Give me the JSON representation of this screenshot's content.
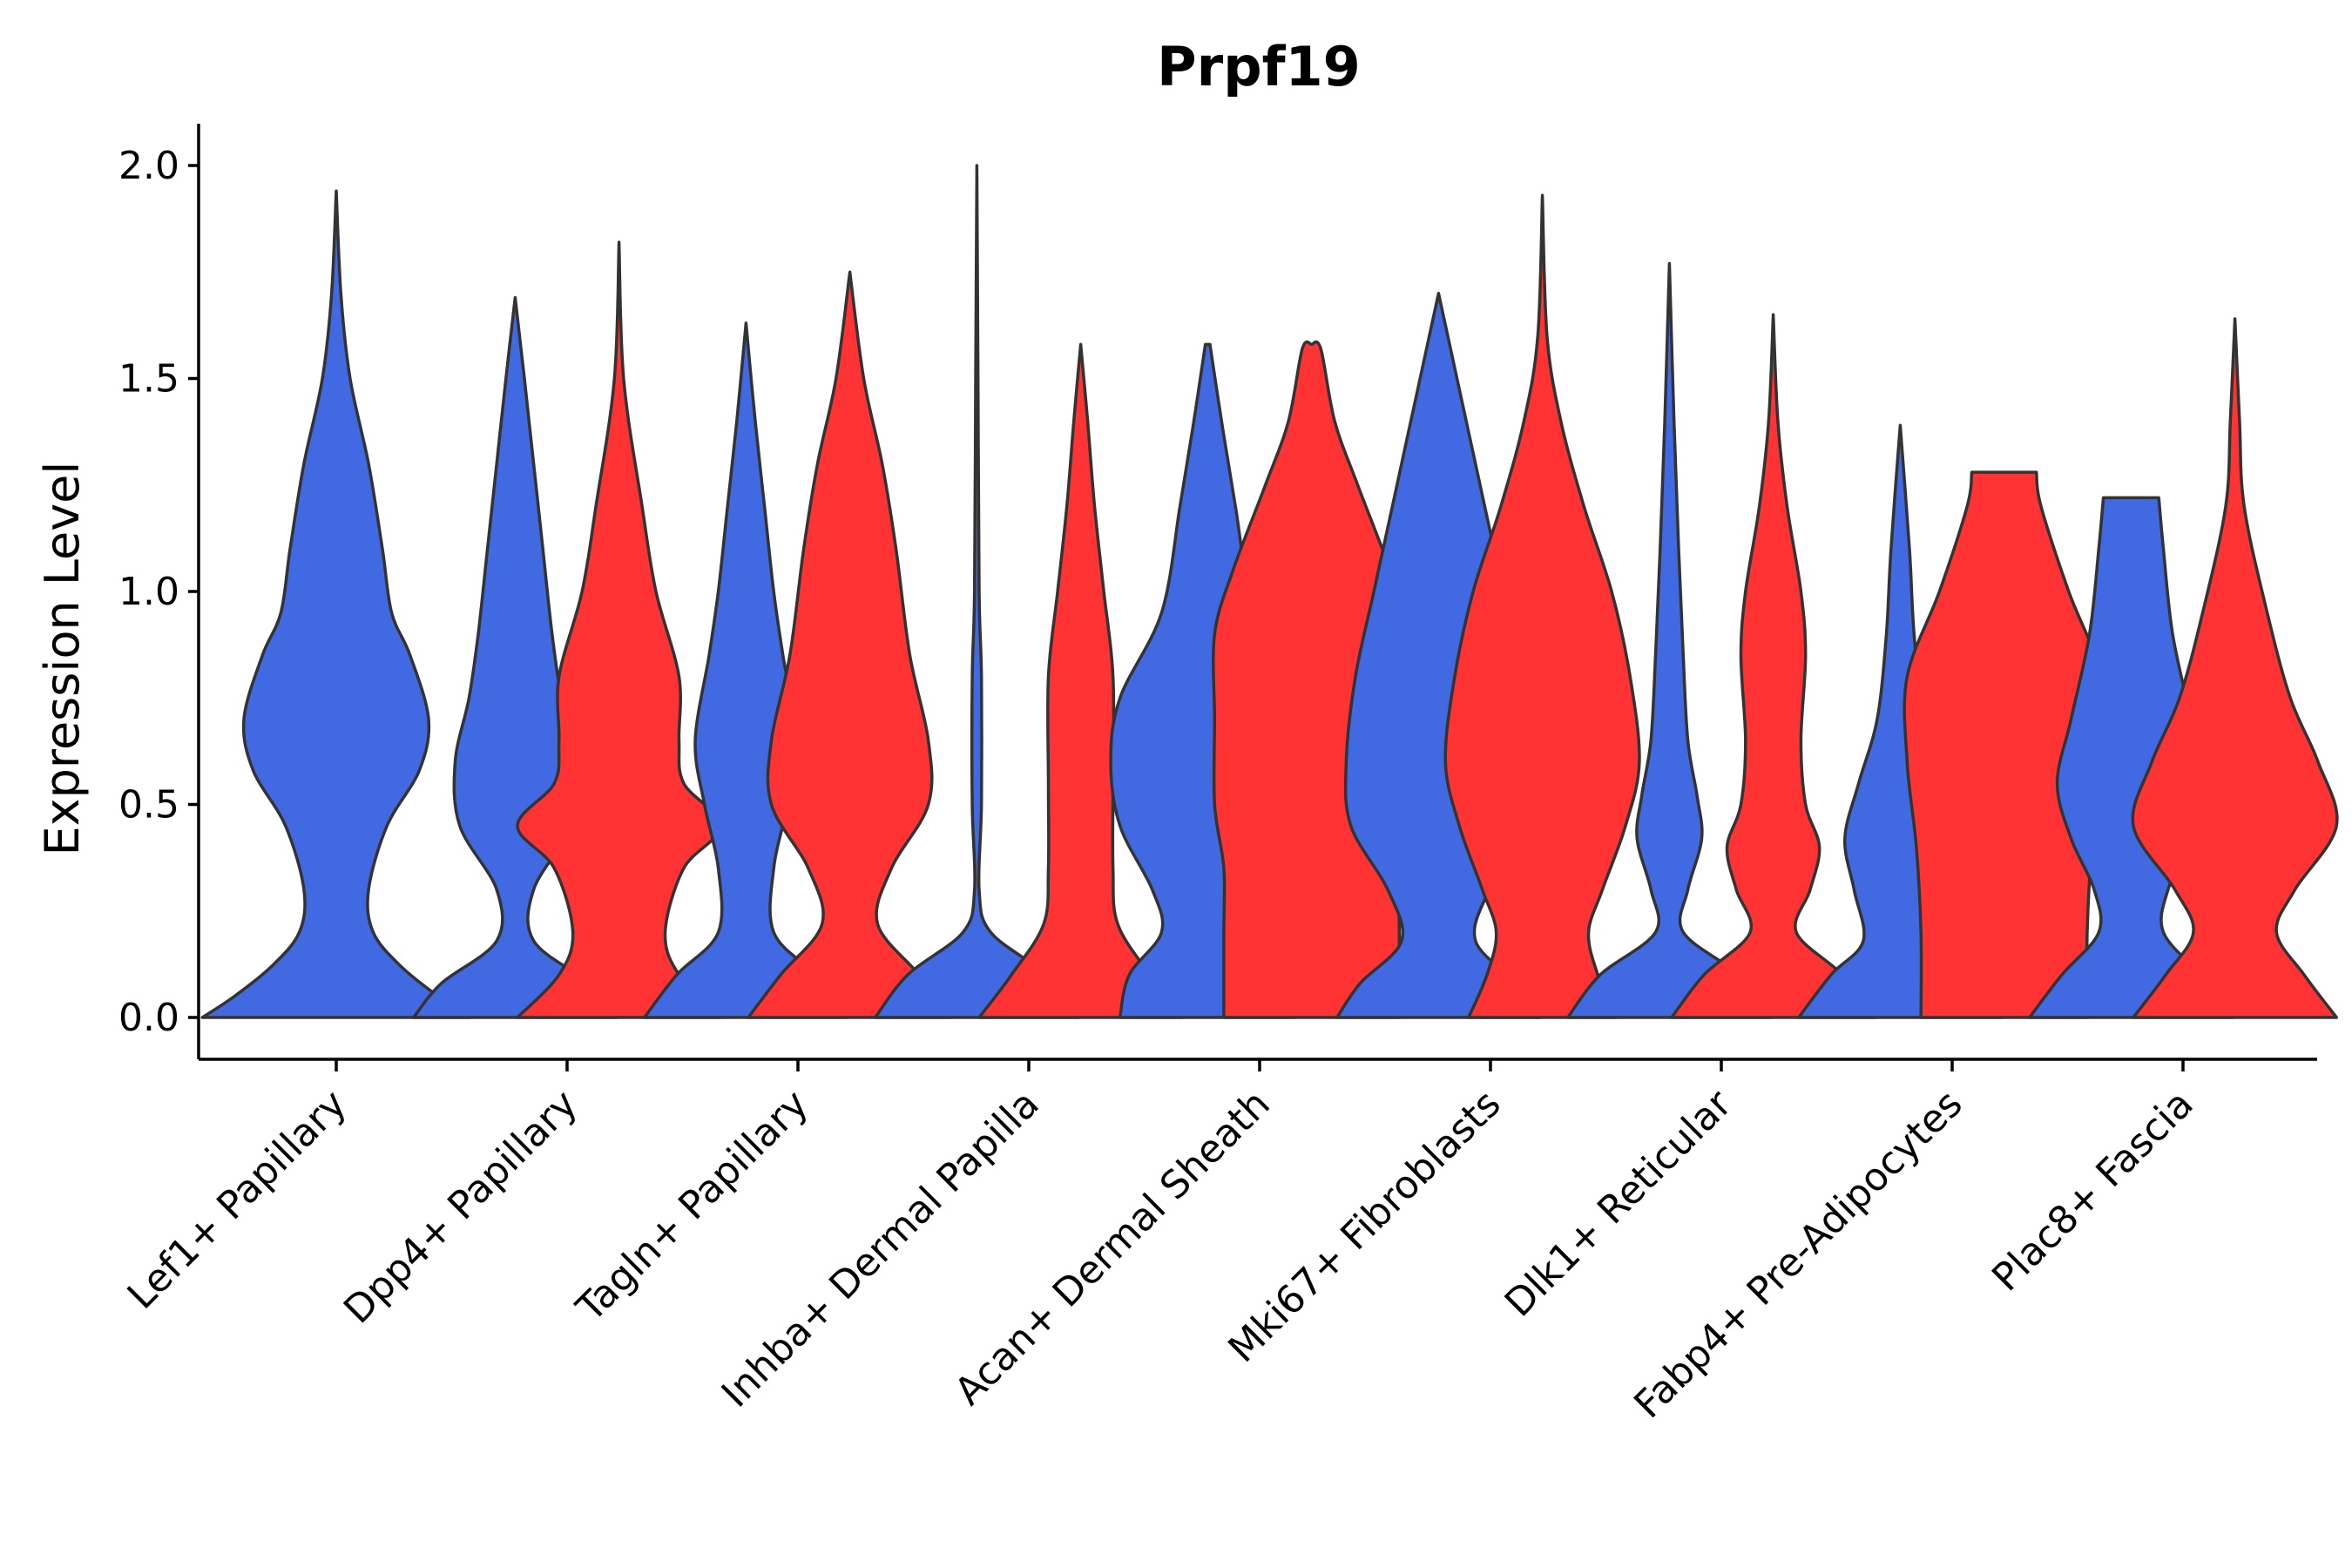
{
  "chart_data": {
    "type": "violin",
    "title": "Prpf19",
    "xlabel": "",
    "ylabel": "Expression Level",
    "ylim": [
      -0.1,
      2.1
    ],
    "yticks": [
      0.0,
      0.5,
      1.0,
      1.5,
      2.0
    ],
    "ytick_labels": [
      "0.0",
      "0.5",
      "1.0",
      "1.5",
      "2.0"
    ],
    "categories": [
      "Lef1+ Papillary",
      "Dpp4+ Papillary",
      "Tagln+ Papillary",
      "Inhba+ Dermal Papilla",
      "Acan+ Dermal Sheath",
      "Mki67+ Fibroblasts",
      "Dlk1+ Reticular",
      "Fabp4+ Pre-Adipocytes",
      "Plac8+ Fascia"
    ],
    "series_colors": {
      "blue": "#4169E1",
      "red": "#FF3333"
    },
    "violins": [
      {
        "category": 0,
        "offset": 0.0,
        "color": "blue",
        "max": 1.94,
        "profile": [
          [
            0,
            0.58
          ],
          [
            0.05,
            0.44
          ],
          [
            0.12,
            0.28
          ],
          [
            0.2,
            0.16
          ],
          [
            0.3,
            0.14
          ],
          [
            0.45,
            0.22
          ],
          [
            0.58,
            0.36
          ],
          [
            0.7,
            0.4
          ],
          [
            0.85,
            0.32
          ],
          [
            0.95,
            0.24
          ],
          [
            1.1,
            0.2
          ],
          [
            1.3,
            0.14
          ],
          [
            1.5,
            0.06
          ],
          [
            1.7,
            0.02
          ],
          [
            1.94,
            0.0
          ]
        ]
      },
      {
        "category": 1,
        "offset": -0.225,
        "color": "blue",
        "max": 1.69,
        "profile": [
          [
            0,
            0.44
          ],
          [
            0.08,
            0.32
          ],
          [
            0.18,
            0.08
          ],
          [
            0.3,
            0.08
          ],
          [
            0.45,
            0.24
          ],
          [
            0.6,
            0.26
          ],
          [
            0.75,
            0.2
          ],
          [
            0.9,
            0.16
          ],
          [
            1.1,
            0.12
          ],
          [
            1.3,
            0.08
          ],
          [
            1.5,
            0.04
          ],
          [
            1.69,
            0.0
          ]
        ]
      },
      {
        "category": 1,
        "offset": 0.225,
        "color": "red",
        "max": 1.82,
        "profile": [
          [
            0,
            0.44
          ],
          [
            0.1,
            0.26
          ],
          [
            0.2,
            0.2
          ],
          [
            0.35,
            0.28
          ],
          [
            0.45,
            0.44
          ],
          [
            0.55,
            0.28
          ],
          [
            0.65,
            0.26
          ],
          [
            0.8,
            0.26
          ],
          [
            1.0,
            0.16
          ],
          [
            1.2,
            0.1
          ],
          [
            1.5,
            0.02
          ],
          [
            1.82,
            0.0
          ]
        ]
      },
      {
        "category": 2,
        "offset": -0.225,
        "color": "blue",
        "max": 1.63,
        "profile": [
          [
            0,
            0.44
          ],
          [
            0.1,
            0.3
          ],
          [
            0.2,
            0.12
          ],
          [
            0.35,
            0.12
          ],
          [
            0.5,
            0.18
          ],
          [
            0.65,
            0.22
          ],
          [
            0.85,
            0.16
          ],
          [
            1.0,
            0.12
          ],
          [
            1.2,
            0.08
          ],
          [
            1.4,
            0.04
          ],
          [
            1.63,
            0.0
          ]
        ]
      },
      {
        "category": 2,
        "offset": 0.225,
        "color": "red",
        "max": 1.75,
        "profile": [
          [
            0,
            0.44
          ],
          [
            0.1,
            0.3
          ],
          [
            0.22,
            0.12
          ],
          [
            0.35,
            0.18
          ],
          [
            0.5,
            0.34
          ],
          [
            0.65,
            0.34
          ],
          [
            0.85,
            0.26
          ],
          [
            1.1,
            0.2
          ],
          [
            1.3,
            0.14
          ],
          [
            1.5,
            0.06
          ],
          [
            1.75,
            0.0
          ]
        ]
      },
      {
        "category": 3,
        "offset": -0.225,
        "color": "blue",
        "max": 2.0,
        "profile": [
          [
            0,
            0.44
          ],
          [
            0.1,
            0.3
          ],
          [
            0.2,
            0.06
          ],
          [
            0.3,
            0.01
          ],
          [
            0.5,
            0.02
          ],
          [
            0.8,
            0.02
          ],
          [
            1.0,
            0.01
          ],
          [
            1.5,
            0.005
          ],
          [
            2.0,
            0.0
          ]
        ]
      },
      {
        "category": 3,
        "offset": 0.225,
        "color": "red",
        "max": 1.58,
        "profile": [
          [
            0,
            0.44
          ],
          [
            0.1,
            0.3
          ],
          [
            0.22,
            0.16
          ],
          [
            0.35,
            0.14
          ],
          [
            0.55,
            0.14
          ],
          [
            0.8,
            0.14
          ],
          [
            1.0,
            0.1
          ],
          [
            1.2,
            0.06
          ],
          [
            1.4,
            0.03
          ],
          [
            1.58,
            0.0
          ]
        ]
      },
      {
        "category": 4,
        "offset": -0.225,
        "color": "blue",
        "max": 1.58,
        "profile": [
          [
            0,
            0.38
          ],
          [
            0.1,
            0.34
          ],
          [
            0.2,
            0.2
          ],
          [
            0.3,
            0.24
          ],
          [
            0.45,
            0.38
          ],
          [
            0.6,
            0.42
          ],
          [
            0.75,
            0.38
          ],
          [
            0.95,
            0.2
          ],
          [
            1.2,
            0.12
          ],
          [
            1.4,
            0.06
          ],
          [
            1.58,
            0.01
          ]
        ]
      },
      {
        "category": 4,
        "offset": 0.225,
        "color": "red",
        "max": 1.58,
        "profile": [
          [
            0,
            0.38
          ],
          [
            0.2,
            0.38
          ],
          [
            0.35,
            0.38
          ],
          [
            0.5,
            0.42
          ],
          [
            0.7,
            0.42
          ],
          [
            0.9,
            0.42
          ],
          [
            1.05,
            0.34
          ],
          [
            1.25,
            0.2
          ],
          [
            1.4,
            0.1
          ],
          [
            1.57,
            0.04
          ],
          [
            1.58,
            0.0
          ]
        ]
      },
      {
        "category": 5,
        "offset": -0.225,
        "color": "blue",
        "max": 1.7,
        "profile": [
          [
            0,
            0.44
          ],
          [
            0.08,
            0.34
          ],
          [
            0.18,
            0.16
          ],
          [
            0.3,
            0.22
          ],
          [
            0.45,
            0.38
          ],
          [
            0.6,
            0.4
          ],
          [
            0.8,
            0.36
          ],
          [
            1.0,
            0.28
          ],
          [
            1.2,
            0.2
          ],
          [
            1.45,
            0.1
          ],
          [
            1.7,
            0.0
          ]
        ]
      },
      {
        "category": 5,
        "offset": 0.225,
        "color": "red",
        "max": 1.93,
        "profile": [
          [
            0,
            0.32
          ],
          [
            0.1,
            0.24
          ],
          [
            0.2,
            0.2
          ],
          [
            0.3,
            0.26
          ],
          [
            0.45,
            0.36
          ],
          [
            0.6,
            0.42
          ],
          [
            0.8,
            0.38
          ],
          [
            1.0,
            0.3
          ],
          [
            1.2,
            0.18
          ],
          [
            1.4,
            0.08
          ],
          [
            1.6,
            0.02
          ],
          [
            1.93,
            0.0
          ]
        ]
      },
      {
        "category": 6,
        "offset": -0.225,
        "color": "blue",
        "max": 1.77,
        "profile": [
          [
            0,
            0.44
          ],
          [
            0.1,
            0.3
          ],
          [
            0.2,
            0.06
          ],
          [
            0.3,
            0.08
          ],
          [
            0.42,
            0.14
          ],
          [
            0.52,
            0.12
          ],
          [
            0.65,
            0.08
          ],
          [
            0.85,
            0.06
          ],
          [
            1.1,
            0.04
          ],
          [
            1.4,
            0.02
          ],
          [
            1.77,
            0.0
          ]
        ]
      },
      {
        "category": 6,
        "offset": 0.225,
        "color": "red",
        "max": 1.65,
        "profile": [
          [
            0,
            0.44
          ],
          [
            0.1,
            0.3
          ],
          [
            0.2,
            0.1
          ],
          [
            0.3,
            0.16
          ],
          [
            0.4,
            0.2
          ],
          [
            0.5,
            0.14
          ],
          [
            0.65,
            0.12
          ],
          [
            0.85,
            0.14
          ],
          [
            1.0,
            0.12
          ],
          [
            1.2,
            0.06
          ],
          [
            1.4,
            0.02
          ],
          [
            1.65,
            0.0
          ]
        ]
      },
      {
        "category": 7,
        "offset": -0.225,
        "color": "blue",
        "max": 1.39,
        "profile": [
          [
            0,
            0.44
          ],
          [
            0.1,
            0.3
          ],
          [
            0.18,
            0.16
          ],
          [
            0.3,
            0.2
          ],
          [
            0.42,
            0.24
          ],
          [
            0.55,
            0.18
          ],
          [
            0.7,
            0.1
          ],
          [
            0.9,
            0.06
          ],
          [
            1.1,
            0.04
          ],
          [
            1.39,
            0.0
          ]
        ]
      },
      {
        "category": 7,
        "offset": 0.225,
        "color": "red",
        "max": 1.28,
        "profile": [
          [
            0,
            0.36
          ],
          [
            0.2,
            0.36
          ],
          [
            0.4,
            0.38
          ],
          [
            0.6,
            0.42
          ],
          [
            0.8,
            0.42
          ],
          [
            1.0,
            0.28
          ],
          [
            1.2,
            0.16
          ],
          [
            1.28,
            0.14
          ]
        ]
      },
      {
        "category": 8,
        "offset": -0.225,
        "color": "blue",
        "max": 1.22,
        "profile": [
          [
            0,
            0.44
          ],
          [
            0.1,
            0.3
          ],
          [
            0.2,
            0.14
          ],
          [
            0.3,
            0.16
          ],
          [
            0.42,
            0.26
          ],
          [
            0.55,
            0.32
          ],
          [
            0.7,
            0.26
          ],
          [
            0.9,
            0.18
          ],
          [
            1.1,
            0.14
          ],
          [
            1.22,
            0.12
          ]
        ]
      },
      {
        "category": 8,
        "offset": 0.225,
        "color": "red",
        "max": 1.64,
        "profile": [
          [
            0,
            0.44
          ],
          [
            0.1,
            0.3
          ],
          [
            0.2,
            0.18
          ],
          [
            0.3,
            0.26
          ],
          [
            0.45,
            0.44
          ],
          [
            0.6,
            0.36
          ],
          [
            0.75,
            0.24
          ],
          [
            0.95,
            0.14
          ],
          [
            1.2,
            0.04
          ],
          [
            1.4,
            0.02
          ],
          [
            1.64,
            0.0
          ]
        ]
      }
    ]
  }
}
